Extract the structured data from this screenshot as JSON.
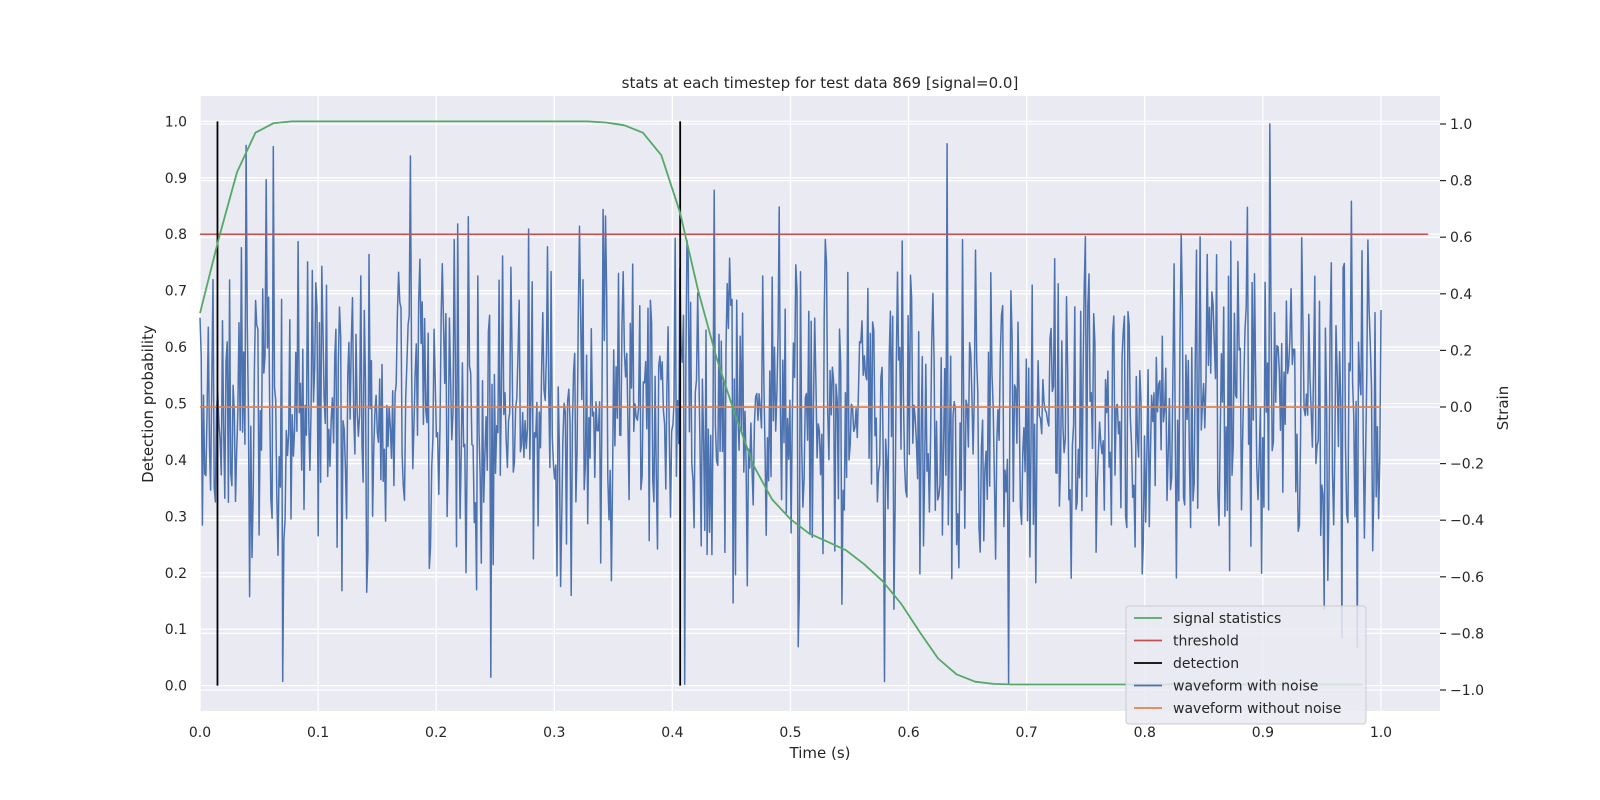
{
  "chart_data": {
    "type": "line",
    "title": "stats at each timestep for test data 869 [signal=0.0]",
    "xlabel": "Time (s)",
    "ylabel_left": "Detection probability",
    "ylabel_right": "Strain",
    "xlim": [
      0.0,
      1.05
    ],
    "ylim_left": [
      -0.045,
      1.045
    ],
    "ylim_right": [
      -1.0,
      1.0
    ],
    "x_ticks": [
      0.0,
      0.1,
      0.2,
      0.3,
      0.4,
      0.5,
      0.6,
      0.7,
      0.8,
      0.9,
      1.0
    ],
    "x_tick_labels": [
      "0.0",
      "0.1",
      "0.2",
      "0.3",
      "0.4",
      "0.5",
      "0.6",
      "0.7",
      "0.8",
      "0.9",
      "1.0"
    ],
    "y_left_ticks": [
      0.0,
      0.1,
      0.2,
      0.3,
      0.4,
      0.5,
      0.6,
      0.7,
      0.8,
      0.9,
      1.0
    ],
    "y_left_tick_labels": [
      "0.0",
      "0.1",
      "0.2",
      "0.3",
      "0.4",
      "0.5",
      "0.6",
      "0.7",
      "0.8",
      "0.9",
      "1.0"
    ],
    "y_right_ticks": [
      -1.0,
      -0.8,
      -0.6,
      -0.4,
      -0.2,
      0.0,
      0.2,
      0.4,
      0.6,
      0.8,
      1.0
    ],
    "y_right_tick_labels": [
      "−1.0",
      "−0.8",
      "−0.6",
      "−0.4",
      "−0.2",
      "0.0",
      "0.2",
      "0.4",
      "0.6",
      "0.8",
      "1.0"
    ],
    "grid": true,
    "legend_position": "lower-right",
    "colors": {
      "background": "#eaeaf2",
      "grid": "#ffffff",
      "signal_statistics": "#55a868",
      "threshold": "#c44e52",
      "detection": "#000000",
      "waveform_with_noise": "#4c72b0",
      "waveform_without_noise": "#dd8452"
    },
    "series": [
      {
        "name": "signal statistics",
        "axis": "left",
        "x": [
          0.0,
          0.0156,
          0.0313,
          0.0469,
          0.0625,
          0.0781,
          0.0938,
          0.3281,
          0.3438,
          0.3594,
          0.375,
          0.3906,
          0.4063,
          0.4219,
          0.4375,
          0.4531,
          0.4688,
          0.4844,
          0.5,
          0.5156,
          0.5313,
          0.5469,
          0.5625,
          0.5781,
          0.5938,
          0.6094,
          0.625,
          0.6406,
          0.6563,
          0.6719,
          0.6875,
          0.7031,
          0.9844
        ],
        "y": [
          0.66,
          0.79,
          0.91,
          0.98,
          0.997,
          1.0,
          1.0,
          1.0,
          0.998,
          0.993,
          0.98,
          0.94,
          0.84,
          0.7,
          0.58,
          0.48,
          0.39,
          0.33,
          0.295,
          0.27,
          0.255,
          0.24,
          0.215,
          0.185,
          0.145,
          0.095,
          0.048,
          0.02,
          0.007,
          0.003,
          0.002,
          0.002,
          0.002
        ]
      },
      {
        "name": "threshold",
        "axis": "left",
        "x": [
          0.0,
          1.04
        ],
        "y": [
          0.8,
          0.8
        ]
      },
      {
        "name": "detection",
        "axis": "left",
        "x": [
          0.0148,
          0.4066
        ],
        "y_min": 0.0,
        "y_max": 1.0
      },
      {
        "name": "waveform with noise",
        "axis": "right",
        "x_range": [
          0.0,
          1.0
        ],
        "n_points": 1000,
        "y_range": [
          -0.98,
          1.0
        ],
        "y_std_approx": 0.3,
        "notable_points": [
          {
            "x": 0.07,
            "y": -0.97
          },
          {
            "x": 0.062,
            "y": 0.92
          },
          {
            "x": 0.41,
            "y": -0.98
          },
          {
            "x": 0.58,
            "y": -0.97
          },
          {
            "x": 0.633,
            "y": 0.93
          },
          {
            "x": 0.906,
            "y": 1.0
          },
          {
            "x": 0.98,
            "y": -0.85
          }
        ]
      },
      {
        "name": "waveform without noise",
        "axis": "right",
        "x": [
          0.0,
          1.0
        ],
        "y": [
          0.0,
          0.0
        ]
      }
    ],
    "legend": [
      "signal statistics",
      "threshold",
      "detection",
      "waveform with noise",
      "waveform without noise"
    ]
  }
}
